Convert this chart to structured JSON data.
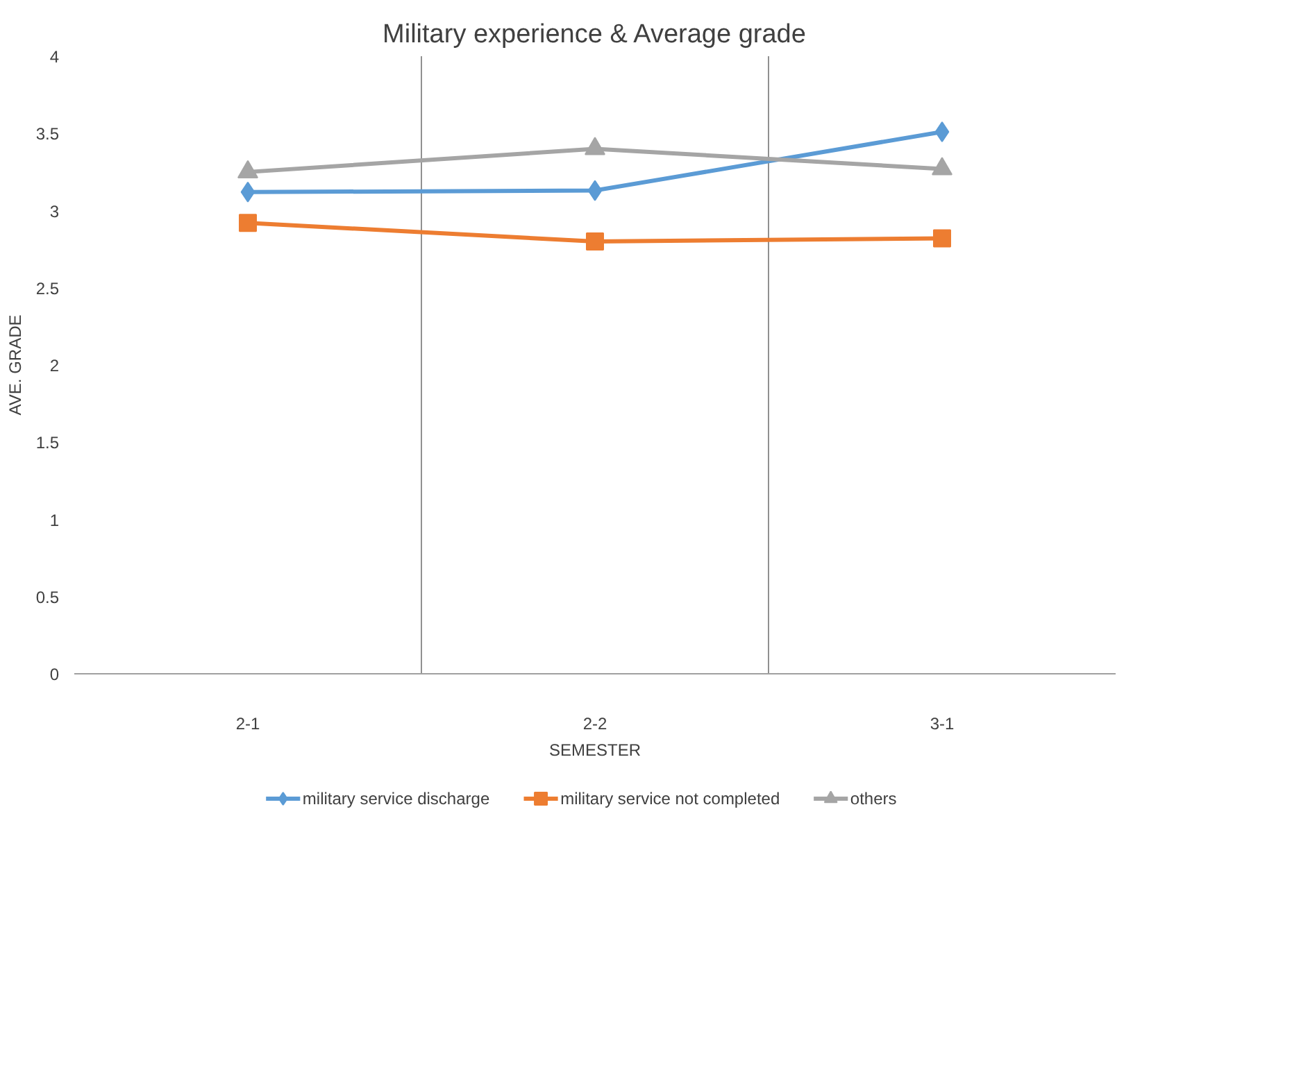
{
  "chart_data": {
    "type": "line",
    "title": "Military experience & Average grade",
    "xlabel": "SEMESTER",
    "ylabel": "AVE. GRADE",
    "categories": [
      "2-1",
      "2-2",
      "3-1"
    ],
    "series": [
      {
        "name": "military service discharge",
        "color": "#5b9bd5",
        "marker": "diamond",
        "values": [
          3.12,
          3.13,
          3.51
        ]
      },
      {
        "name": "military service not completed",
        "color": "#ed7d31",
        "marker": "square",
        "values": [
          2.92,
          2.8,
          2.82
        ]
      },
      {
        "name": "others",
        "color": "#a5a5a5",
        "marker": "triangle",
        "values": [
          3.25,
          3.4,
          3.27
        ]
      }
    ],
    "ylim": [
      0,
      4
    ],
    "yticks": [
      0,
      0.5,
      1,
      1.5,
      2,
      2.5,
      3,
      3.5,
      4
    ],
    "grid": "x",
    "legend": "bottom",
    "line_style": "solid"
  }
}
